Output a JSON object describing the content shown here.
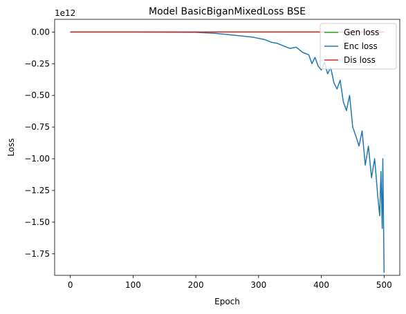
{
  "chart_data": {
    "type": "line",
    "title": "Model BasicBiganMixedLoss BSE",
    "xlabel": "Epoch",
    "ylabel": "Loss",
    "y_offset_text": "1e12",
    "xlim": [
      -25,
      525
    ],
    "ylim": [
      -1.92,
      0.1
    ],
    "x_ticks": [
      0,
      100,
      200,
      300,
      400,
      500
    ],
    "x_tick_labels": [
      "0",
      "100",
      "200",
      "300",
      "400",
      "500"
    ],
    "y_ticks": [
      0.0,
      -0.25,
      -0.5,
      -0.75,
      -1.0,
      -1.25,
      -1.5,
      -1.75
    ],
    "y_tick_labels": [
      "0.00",
      "−0.25",
      "−0.50",
      "−0.75",
      "−1.00",
      "−1.25",
      "−1.50",
      "−1.75"
    ],
    "grid": false,
    "legend_position": "top-right",
    "series": [
      {
        "name": "Gen loss",
        "color": "#2ca02c",
        "x": [
          0,
          500
        ],
        "y": [
          0,
          0
        ]
      },
      {
        "name": "Enc loss",
        "color": "#1f77b4",
        "x": [
          0,
          100,
          200,
          230,
          250,
          270,
          290,
          300,
          310,
          320,
          330,
          340,
          350,
          360,
          370,
          380,
          385,
          390,
          395,
          400,
          405,
          410,
          415,
          420,
          425,
          430,
          435,
          440,
          445,
          450,
          455,
          460,
          465,
          470,
          475,
          480,
          485,
          490,
          493,
          495,
          497,
          498,
          500
        ],
        "y": [
          0,
          0,
          -0.003,
          -0.01,
          -0.02,
          -0.03,
          -0.04,
          -0.05,
          -0.06,
          -0.08,
          -0.09,
          -0.11,
          -0.13,
          -0.12,
          -0.16,
          -0.18,
          -0.25,
          -0.2,
          -0.27,
          -0.3,
          -0.24,
          -0.33,
          -0.28,
          -0.4,
          -0.45,
          -0.38,
          -0.55,
          -0.62,
          -0.5,
          -0.75,
          -0.82,
          -0.9,
          -0.78,
          -1.05,
          -0.9,
          -1.15,
          -1.0,
          -1.3,
          -1.45,
          -1.1,
          -1.55,
          -1.0,
          -1.9
        ]
      },
      {
        "name": "Dis loss",
        "color": "#d62728",
        "x": [
          0,
          500
        ],
        "y": [
          0,
          0
        ]
      }
    ]
  }
}
